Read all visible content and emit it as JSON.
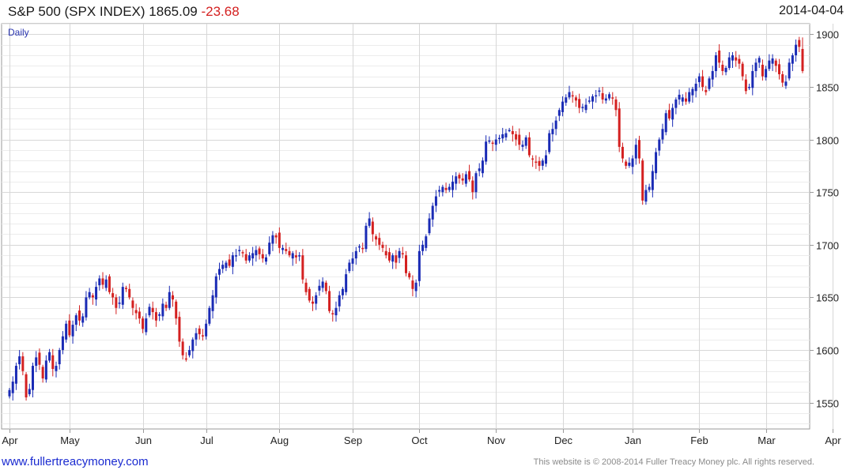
{
  "header": {
    "title": "S&P 500 (SPX INDEX)",
    "last": "1865.09",
    "change": "-23.68",
    "date": "2014-04-04"
  },
  "footer": {
    "site": "www.fullertreacymoney.com",
    "copyright": "This website is © 2008-2014 Fuller Treacy Money plc. All rights reserved."
  },
  "colors": {
    "up": "#1a2bb5",
    "down": "#d42020",
    "grid": "#d7d7d7",
    "axis": "#9a9a9a"
  },
  "chart_data": {
    "type": "candlestick",
    "period_label": "Daily",
    "y_ticks": [
      1550,
      1600,
      1650,
      1700,
      1750,
      1800,
      1850,
      1900
    ],
    "ylim": [
      1525,
      1910
    ],
    "x_ticks": [
      "Apr",
      "May",
      "Jun",
      "Jul",
      "Aug",
      "Sep",
      "Oct",
      "Nov",
      "Dec",
      "Jan",
      "Feb",
      "Mar",
      "Apr"
    ],
    "tick_day_index": [
      0,
      18,
      40,
      59,
      81,
      103,
      123,
      146,
      166,
      187,
      207,
      227,
      247
    ],
    "close_last": 1865.09,
    "closes": [
      1562,
      1570,
      1585,
      1594,
      1580,
      1555,
      1563,
      1585,
      1593,
      1586,
      1573,
      1590,
      1598,
      1582,
      1585,
      1600,
      1613,
      1625,
      1614,
      1624,
      1633,
      1628,
      1632,
      1650,
      1655,
      1650,
      1660,
      1668,
      1662,
      1667,
      1655,
      1650,
      1640,
      1645,
      1660,
      1658,
      1650,
      1640,
      1635,
      1630,
      1620,
      1630,
      1641,
      1636,
      1628,
      1634,
      1644,
      1640,
      1655,
      1648,
      1630,
      1608,
      1595,
      1592,
      1600,
      1610,
      1616,
      1615,
      1614,
      1625,
      1640,
      1652,
      1670,
      1677,
      1681,
      1683,
      1680,
      1690,
      1690,
      1695,
      1692,
      1685,
      1690,
      1692,
      1695,
      1691,
      1687,
      1688,
      1702,
      1709,
      1707,
      1697,
      1697,
      1694,
      1690,
      1692,
      1688,
      1690,
      1667,
      1655,
      1647,
      1644,
      1652,
      1661,
      1665,
      1656,
      1637,
      1635,
      1640,
      1652,
      1658,
      1672,
      1683,
      1687,
      1694,
      1698,
      1697,
      1718,
      1725,
      1710,
      1705,
      1700,
      1697,
      1690,
      1685,
      1690,
      1683,
      1694,
      1691,
      1673,
      1669,
      1658,
      1664,
      1694,
      1700,
      1708,
      1725,
      1737,
      1746,
      1752,
      1755,
      1752,
      1755,
      1760,
      1765,
      1763,
      1761,
      1767,
      1762,
      1750,
      1768,
      1770,
      1780,
      1798,
      1799,
      1797,
      1800,
      1801,
      1805,
      1806,
      1809,
      1805,
      1800,
      1795,
      1795,
      1802,
      1785,
      1781,
      1778,
      1775,
      1780,
      1785,
      1806,
      1810,
      1818,
      1828,
      1836,
      1840,
      1845,
      1842,
      1837,
      1830,
      1831,
      1833,
      1837,
      1841,
      1842,
      1846,
      1838,
      1839,
      1843,
      1840,
      1828,
      1793,
      1782,
      1775,
      1775,
      1782,
      1795,
      1782,
      1742,
      1752,
      1755,
      1770,
      1788,
      1800,
      1810,
      1825,
      1820,
      1830,
      1838,
      1838,
      1840,
      1836,
      1845,
      1848,
      1853,
      1860,
      1850,
      1845,
      1858,
      1865,
      1880,
      1873,
      1865,
      1868,
      1878,
      1880,
      1875,
      1872,
      1860,
      1846,
      1850,
      1865,
      1873,
      1873,
      1860,
      1867,
      1875,
      1877,
      1870,
      1862,
      1854,
      1855,
      1873,
      1880,
      1890,
      1888,
      1865
    ]
  }
}
